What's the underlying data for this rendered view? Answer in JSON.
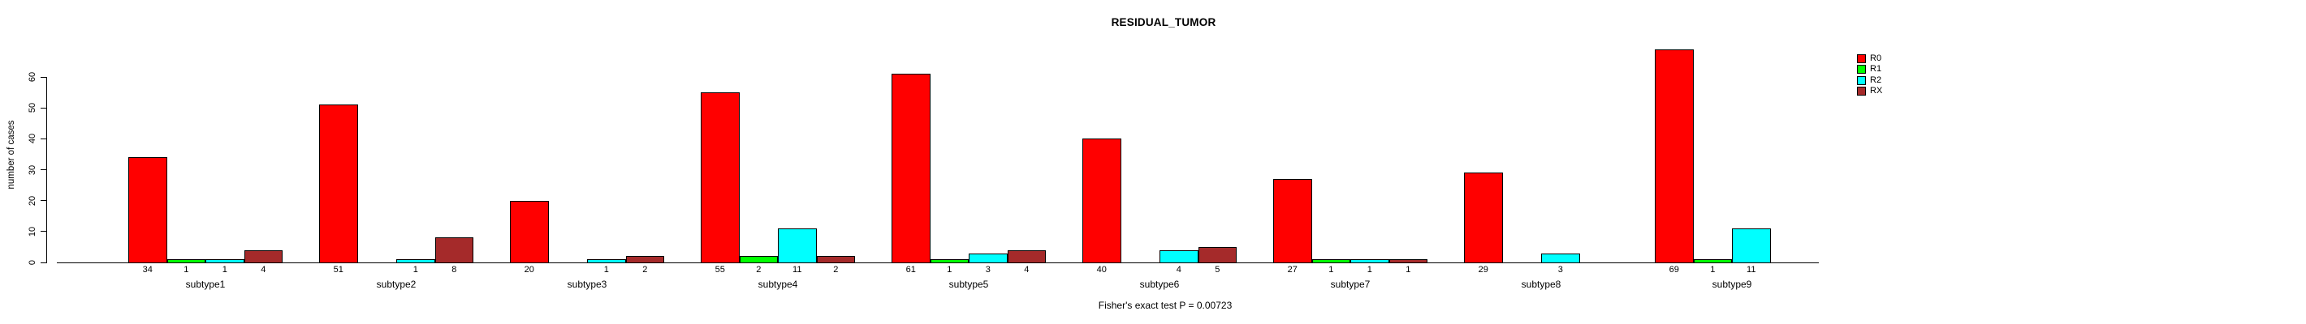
{
  "title": "RESIDUAL_TUMOR",
  "caption": "Fisher's exact test P = 0.00723",
  "chart_data": {
    "type": "bar",
    "title": "RESIDUAL_TUMOR",
    "xlabel": "",
    "ylabel": "number of cases",
    "ylim": [
      0,
      60
    ],
    "yticks": [
      0,
      10,
      20,
      30,
      40,
      50,
      60
    ],
    "grid": false,
    "legend_position": "right",
    "bar_value_labels_shown": true,
    "footnote": "Fisher's exact test P = 0.00723",
    "categories": [
      "subtype1",
      "subtype2",
      "subtype3",
      "subtype4",
      "subtype5",
      "subtype6",
      "subtype7",
      "subtype8",
      "subtype9"
    ],
    "series": [
      {
        "name": "R0",
        "color": "#FF0000",
        "values": [
          34,
          51,
          20,
          55,
          61,
          40,
          27,
          29,
          69
        ]
      },
      {
        "name": "R1",
        "color": "#00FF00",
        "values": [
          1,
          null,
          null,
          2,
          1,
          null,
          1,
          null,
          1
        ]
      },
      {
        "name": "R2",
        "color": "#00FFFF",
        "values": [
          1,
          1,
          1,
          11,
          3,
          4,
          1,
          3,
          11
        ]
      },
      {
        "name": "RX",
        "color": "#A52A2A",
        "values": [
          4,
          8,
          2,
          2,
          4,
          5,
          1,
          null,
          null
        ]
      }
    ]
  }
}
